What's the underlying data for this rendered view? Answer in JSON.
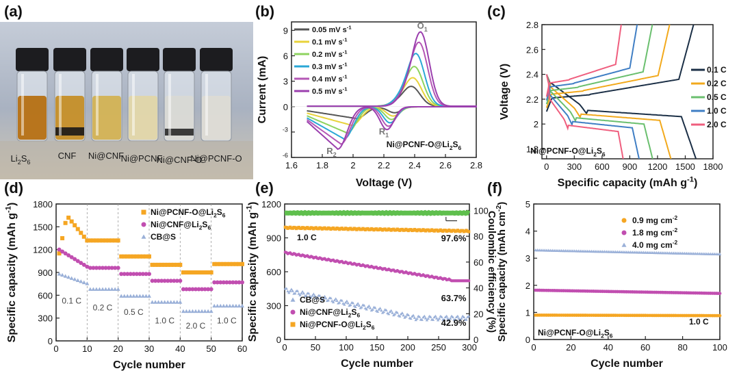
{
  "panels": {
    "a": {
      "label": "(a)",
      "vials": [
        "Li2S6",
        "CNF",
        "Ni@CNF",
        "Ni@PCNF",
        "Ni@CNF-O",
        "Ni@PCNF-O"
      ]
    },
    "b": {
      "label": "(b)",
      "annotation": "Ni@PCNF-O@Li2S6"
    },
    "c": {
      "label": "(c)",
      "annotation": "Ni@PCNF-O@Li2S6"
    },
    "d": {
      "label": "(d)"
    },
    "e": {
      "label": "(e)"
    },
    "f": {
      "label": "(f)",
      "annotation": "Ni@PCNF-O@Li2S6"
    }
  },
  "colors": {
    "b": [
      "#555555",
      "#e8d23a",
      "#8ed35f",
      "#2aa7d6",
      "#b457b5",
      "#9b3fae"
    ],
    "c": [
      "#1b2f46",
      "#f2a91c",
      "#6abf6e",
      "#3f7ec4",
      "#ef5e7e"
    ],
    "d": [
      "#f5a623",
      "#c14eb0",
      "#9ab0d8"
    ],
    "e": [
      "#f5a623",
      "#c14eb0",
      "#9ab0d8",
      "#5fbf4d"
    ],
    "f": [
      "#f5a623",
      "#c14eb0",
      "#9ab0d8"
    ]
  },
  "chart_data": [
    {
      "panel": "b",
      "type": "line",
      "xlabel": "Voltage (V)",
      "ylabel": "Current (mA)",
      "xlim": [
        1.6,
        2.8
      ],
      "ylim": [
        -6,
        10
      ],
      "xticks": [
        1.6,
        1.8,
        2.0,
        2.2,
        2.4,
        2.6,
        2.8
      ],
      "yticks": [
        -6,
        -3,
        0,
        3,
        6,
        9
      ],
      "legend_position": "top-left",
      "series": [
        {
          "name": "0.05 mV s-1",
          "oxidation_peak": [
            2.38,
            2.3
          ],
          "reduction_peaks": [
            [
              2.27,
              -0.7
            ],
            [
              2.02,
              -1.4
            ]
          ]
        },
        {
          "name": "0.1 mV s-1",
          "oxidation_peak": [
            2.39,
            3.3
          ],
          "reduction_peaks": [
            [
              2.26,
              -1.1
            ],
            [
              1.99,
              -2.2
            ]
          ]
        },
        {
          "name": "0.2 mV s-1",
          "oxidation_peak": [
            2.4,
            4.6
          ],
          "reduction_peaks": [
            [
              2.25,
              -1.5
            ],
            [
              1.96,
              -3.1
            ]
          ]
        },
        {
          "name": "0.3 mV s-1",
          "oxidation_peak": [
            2.41,
            6.1
          ],
          "reduction_peaks": [
            [
              2.24,
              -1.9
            ],
            [
              1.94,
              -3.8
            ]
          ]
        },
        {
          "name": "0.4 mV s-1",
          "oxidation_peak": [
            2.43,
            7.4
          ],
          "reduction_peaks": [
            [
              2.23,
              -2.3
            ],
            [
              1.92,
              -4.4
            ]
          ]
        },
        {
          "name": "0.5 mV s-1",
          "oxidation_peak": [
            2.44,
            8.6
          ],
          "reduction_peaks": [
            [
              2.22,
              -2.7
            ],
            [
              1.9,
              -5.0
            ]
          ]
        }
      ],
      "annotations": [
        "O1",
        "R1",
        "R2",
        "Ni@PCNF-O@Li2S6"
      ]
    },
    {
      "panel": "c",
      "type": "line",
      "xlabel": "Specific capacity (mAh g-1)",
      "ylabel": "Voltage (V)",
      "xlim": [
        -50,
        1800
      ],
      "ylim": [
        1.72,
        2.8
      ],
      "xticks": [
        0,
        300,
        600,
        900,
        1200,
        1500,
        1800
      ],
      "yticks": [
        1.8,
        2.0,
        2.2,
        2.4,
        2.6,
        2.8
      ],
      "legend_position": "right",
      "series": [
        {
          "name": "0.1 C",
          "discharge_capacity": 1620,
          "charge_capacity": 1590
        },
        {
          "name": "0.2 C",
          "discharge_capacity": 1360,
          "charge_capacity": 1340
        },
        {
          "name": "0.5 C",
          "discharge_capacity": 1170,
          "charge_capacity": 1160
        },
        {
          "name": "1.0 C",
          "discharge_capacity": 1030,
          "charge_capacity": 1000
        },
        {
          "name": "2.0 C",
          "discharge_capacity": 860,
          "charge_capacity": 830
        }
      ],
      "annotations": [
        "Ni@PCNF-O@Li2S6"
      ]
    },
    {
      "panel": "d",
      "type": "scatter",
      "xlabel": "Cycle number",
      "ylabel": "Specific capacity (mAh g-1)",
      "xlim": [
        0,
        60
      ],
      "ylim": [
        0,
        1800
      ],
      "xticks": [
        0,
        10,
        20,
        30,
        40,
        50,
        60
      ],
      "yticks": [
        0,
        300,
        600,
        900,
        1200,
        1500,
        1800
      ],
      "legend_position": "top-right",
      "rate_labels": [
        "0.1 C",
        "0.2 C",
        "0.5 C",
        "1.0 C",
        "2.0 C",
        "1.0 C"
      ],
      "series": [
        {
          "name": "Ni@PCNF-O@Li2S6",
          "segment_values": [
            1620,
            1320,
            1110,
            1000,
            900,
            1010
          ]
        },
        {
          "name": "Ni@CNF@Li2S6",
          "segment_values": [
            1240,
            960,
            880,
            790,
            680,
            770
          ]
        },
        {
          "name": "CB@S",
          "segment_values": [
            780,
            680,
            590,
            510,
            390,
            460
          ]
        }
      ]
    },
    {
      "panel": "e",
      "type": "scatter",
      "xlabel": "Cycle number",
      "ylabel": "Specific capacity (mAh g-1)",
      "ylabel_right": "Coulombic efficiency (%)",
      "xlim": [
        0,
        300
      ],
      "ylim": [
        0,
        1200
      ],
      "ylim_right": [
        0,
        105
      ],
      "xticks": [
        0,
        50,
        100,
        150,
        200,
        250,
        300
      ],
      "yticks": [
        0,
        300,
        600,
        900,
        1200
      ],
      "yticks_right": [
        0,
        20,
        40,
        60,
        80,
        100
      ],
      "legend_position": "bottom-left",
      "rate_label": "1.0 C",
      "series": [
        {
          "name": "Ni@PCNF-O@Li2S6",
          "start": 990,
          "end": 960,
          "retention": "97.6%"
        },
        {
          "name": "Ni@CNF@Li2S6",
          "start": 770,
          "end": 500,
          "retention": "63.7%"
        },
        {
          "name": "CB@S",
          "start": 440,
          "end": 190,
          "retention": "42.9%"
        },
        {
          "name": "Coulombic efficiency",
          "value": 98
        }
      ]
    },
    {
      "panel": "f",
      "type": "scatter",
      "xlabel": "Cycle number",
      "ylabel": "Specific capacity (mAh cm-2)",
      "xlim": [
        0,
        100
      ],
      "ylim": [
        0,
        5
      ],
      "xticks": [
        0,
        20,
        40,
        60,
        80,
        100
      ],
      "yticks": [
        0,
        1,
        2,
        3,
        4,
        5
      ],
      "legend_position": "top-right",
      "rate_label": "1.0 C",
      "series": [
        {
          "name": "0.9 mg cm-2",
          "start": 0.9,
          "end": 0.88
        },
        {
          "name": "1.8 mg cm-2",
          "start": 1.82,
          "end": 1.7
        },
        {
          "name": "4.0 mg cm-2",
          "start": 3.3,
          "end": 3.15
        }
      ],
      "annotations": [
        "Ni@PCNF-O@Li2S6"
      ]
    }
  ]
}
